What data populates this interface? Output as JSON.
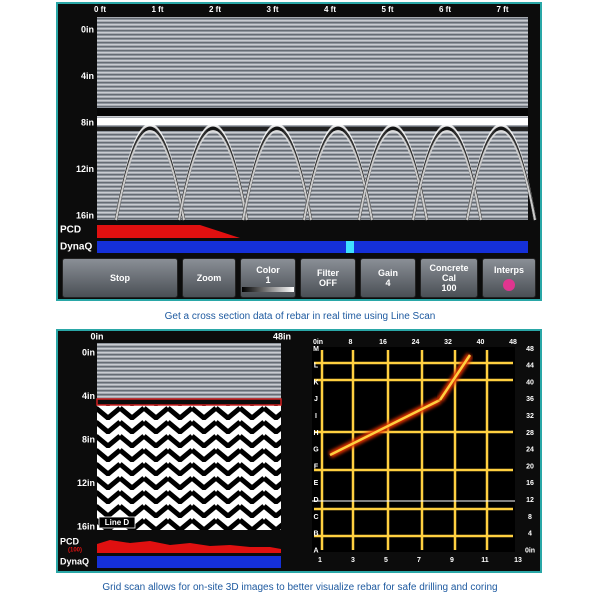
{
  "top_panel": {
    "x_labels": [
      "0 ft",
      "1 ft",
      "2 ft",
      "3 ft",
      "4 ft",
      "5 ft",
      "6 ft",
      "7 ft"
    ],
    "y_labels": [
      "0in",
      "4in",
      "8in",
      "12in",
      "16in"
    ],
    "pcd_label": "PCD",
    "dynaq_label": "DynaQ",
    "buttons": [
      {
        "label": "Stop"
      },
      {
        "label": "Zoom"
      },
      {
        "label": "Color",
        "value": "1"
      },
      {
        "label": "Filter",
        "value": "OFF"
      },
      {
        "label": "Gain",
        "value": "4"
      },
      {
        "label": "Concrete Cal",
        "value": "100"
      },
      {
        "label": "Interps"
      }
    ]
  },
  "caption_1": "Get a cross section data of rebar in real time using Line Scan",
  "bottom_panel": {
    "x_labels": [
      "0in",
      "48in"
    ],
    "y_labels": [
      "0in",
      "4in",
      "8in",
      "12in",
      "16in"
    ],
    "line_label": "Line D",
    "pcd_label": "PCD",
    "pcd_value": "(100)",
    "dynaq_label": "DynaQ",
    "grid": {
      "top_labels": [
        "0in",
        "8",
        "16",
        "24",
        "32",
        "40",
        "48"
      ],
      "left_labels": [
        "M",
        "L",
        "K",
        "J",
        "I",
        "H",
        "G",
        "F",
        "E",
        "D",
        "C",
        "B",
        "A"
      ],
      "right_labels": [
        "48",
        "44",
        "40",
        "36",
        "32",
        "28",
        "24",
        "20",
        "16",
        "12",
        "8",
        "4",
        "0in"
      ],
      "bottom_labels": [
        "1",
        "3",
        "5",
        "7",
        "9",
        "11",
        "13"
      ]
    }
  },
  "caption_2": "Grid scan allows for on-site 3D images to better visualize rebar for safe drilling and coring"
}
